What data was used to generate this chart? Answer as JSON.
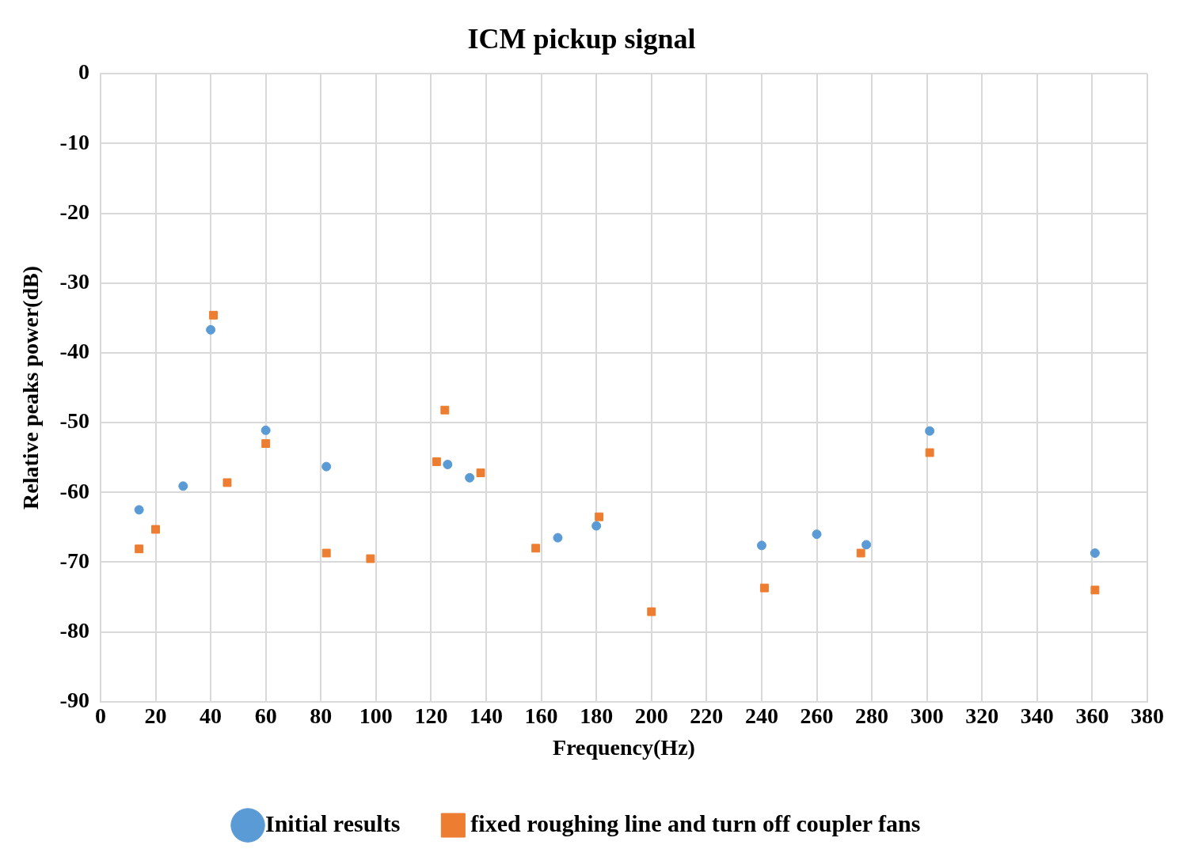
{
  "chart_data": {
    "type": "scatter",
    "title": "ICM pickup signal",
    "xlabel": "Frequency(Hz)",
    "ylabel": "Relative peaks power(dB)",
    "xlim": [
      0,
      380
    ],
    "xticks": [
      0,
      20,
      40,
      60,
      80,
      100,
      120,
      140,
      160,
      180,
      200,
      220,
      240,
      260,
      280,
      300,
      320,
      340,
      360,
      380
    ],
    "ylim": [
      -90,
      0
    ],
    "yticks": [
      -90,
      -80,
      -70,
      -60,
      -50,
      -40,
      -30,
      -20,
      -10,
      0
    ],
    "grid": true,
    "legend": "bottom",
    "series": [
      {
        "name": "Initial results",
        "color": "#5b9bd5",
        "marker": "circle",
        "x": [
          14,
          30,
          40,
          60,
          82,
          126,
          134,
          166,
          180,
          240,
          260,
          278,
          301,
          361
        ],
        "values": [
          -62.5,
          -59.1,
          -36.7,
          -51.1,
          -56.3,
          -56,
          -57.9,
          -66.5,
          -64.8,
          -67.6,
          -66,
          -67.5,
          -51.2,
          -68.7
        ]
      },
      {
        "name": "fixed roughing line and turn off coupler fans",
        "color": "#ed7d31",
        "marker": "square",
        "x": [
          14,
          20,
          41,
          46,
          60,
          82,
          98,
          122,
          125,
          138,
          158,
          181,
          200,
          241,
          276,
          301,
          361
        ],
        "values": [
          -68.1,
          -65.3,
          -34.6,
          -58.6,
          -53,
          -68.7,
          -69.5,
          -55.6,
          -48.2,
          -57.2,
          -68,
          -63.5,
          -77.1,
          -73.7,
          -68.7,
          -54.3,
          -74
        ]
      }
    ]
  }
}
